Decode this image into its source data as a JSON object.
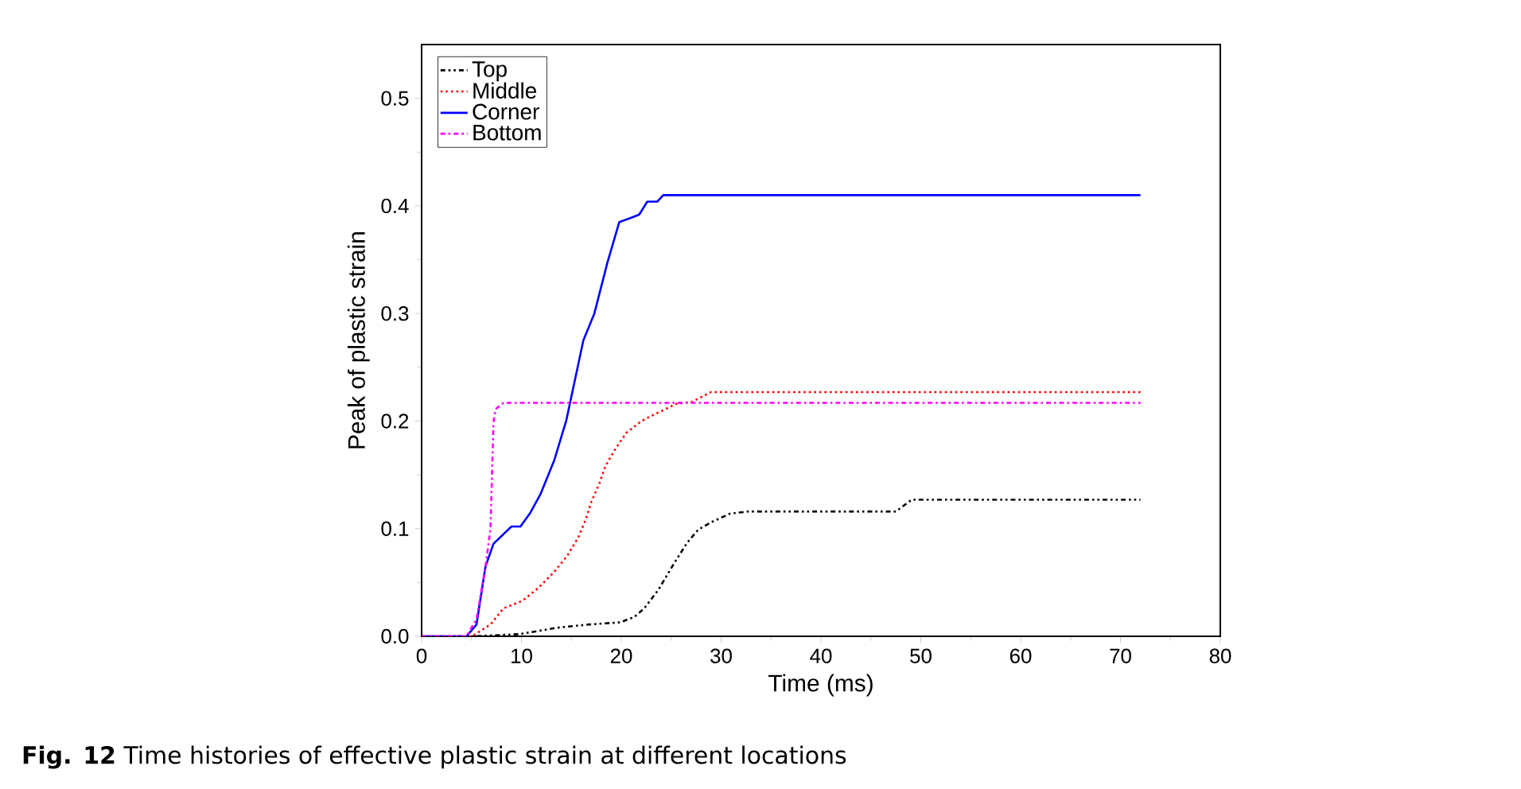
{
  "chart_data": {
    "type": "line",
    "xlabel": "Time (ms)",
    "ylabel": "Peak of plastic strain",
    "annotations": [
      "**Fig. 12**  Time histories of effective plastic strain at different locations"
    ],
    "xlim": [
      0,
      80
    ],
    "ylim": [
      0,
      0.55
    ],
    "xticks": [
      0,
      10,
      20,
      30,
      40,
      50,
      60,
      70,
      80
    ],
    "yticks": [
      {
        "value": 0,
        "label": "0.0"
      },
      0.1,
      0.2,
      0.3,
      0.4,
      0.5
    ],
    "legend": "top left",
    "grid": false,
    "marker": "none",
    "series": [
      {
        "name": "Top",
        "color": "#000000",
        "line_style": "dashdotdotted",
        "x": [
          0,
          5.1,
          9.8,
          13.6,
          16.8,
          19.9,
          21.3,
          22.3,
          23.7,
          25.3,
          26.6,
          27.7,
          29.0,
          30.9,
          32.7,
          47.5,
          49.1,
          72
        ],
        "values": [
          0,
          0,
          0.002,
          0.008,
          0.011,
          0.013,
          0.018,
          0.026,
          0.043,
          0.068,
          0.087,
          0.099,
          0.106,
          0.114,
          0.116,
          0.116,
          0.127,
          0.127
        ]
      },
      {
        "name": "Middle",
        "color": "#ff0000",
        "line_style": "dotted",
        "x": [
          0,
          5.05,
          6.9,
          8.2,
          10.1,
          11.7,
          13.3,
          14.6,
          15.7,
          16.5,
          17.0,
          17.8,
          18.4,
          19.4,
          20.5,
          22.0,
          23.7,
          25.5,
          27.1,
          29.0,
          72
        ],
        "values": [
          0,
          0,
          0.011,
          0.026,
          0.033,
          0.045,
          0.06,
          0.075,
          0.092,
          0.11,
          0.125,
          0.142,
          0.158,
          0.174,
          0.189,
          0.2,
          0.208,
          0.216,
          0.218,
          0.227,
          0.227
        ]
      },
      {
        "name": "Corner",
        "color": "#0000ff",
        "line_style": "solid",
        "x": [
          0,
          4.5,
          5.5,
          6.4,
          7.2,
          9.0,
          9.9,
          10.9,
          11.9,
          13.3,
          14.5,
          16.2,
          17.3,
          18.6,
          19.8,
          21.0,
          21.8,
          22.6,
          23.6,
          24.2,
          72
        ],
        "values": [
          0,
          0,
          0.011,
          0.065,
          0.086,
          0.102,
          0.102,
          0.115,
          0.132,
          0.164,
          0.201,
          0.275,
          0.3,
          0.347,
          0.385,
          0.389,
          0.392,
          0.404,
          0.404,
          0.41,
          0.41
        ]
      },
      {
        "name": "Bottom",
        "color": "#ff00ff",
        "line_style": "dashdotted",
        "x": [
          0,
          4.5,
          5.5,
          6.4,
          6.9,
          7.2,
          7.4,
          8.2,
          72
        ],
        "values": [
          0,
          0,
          0.016,
          0.065,
          0.1,
          0.199,
          0.211,
          0.217,
          0.217
        ]
      }
    ]
  }
}
